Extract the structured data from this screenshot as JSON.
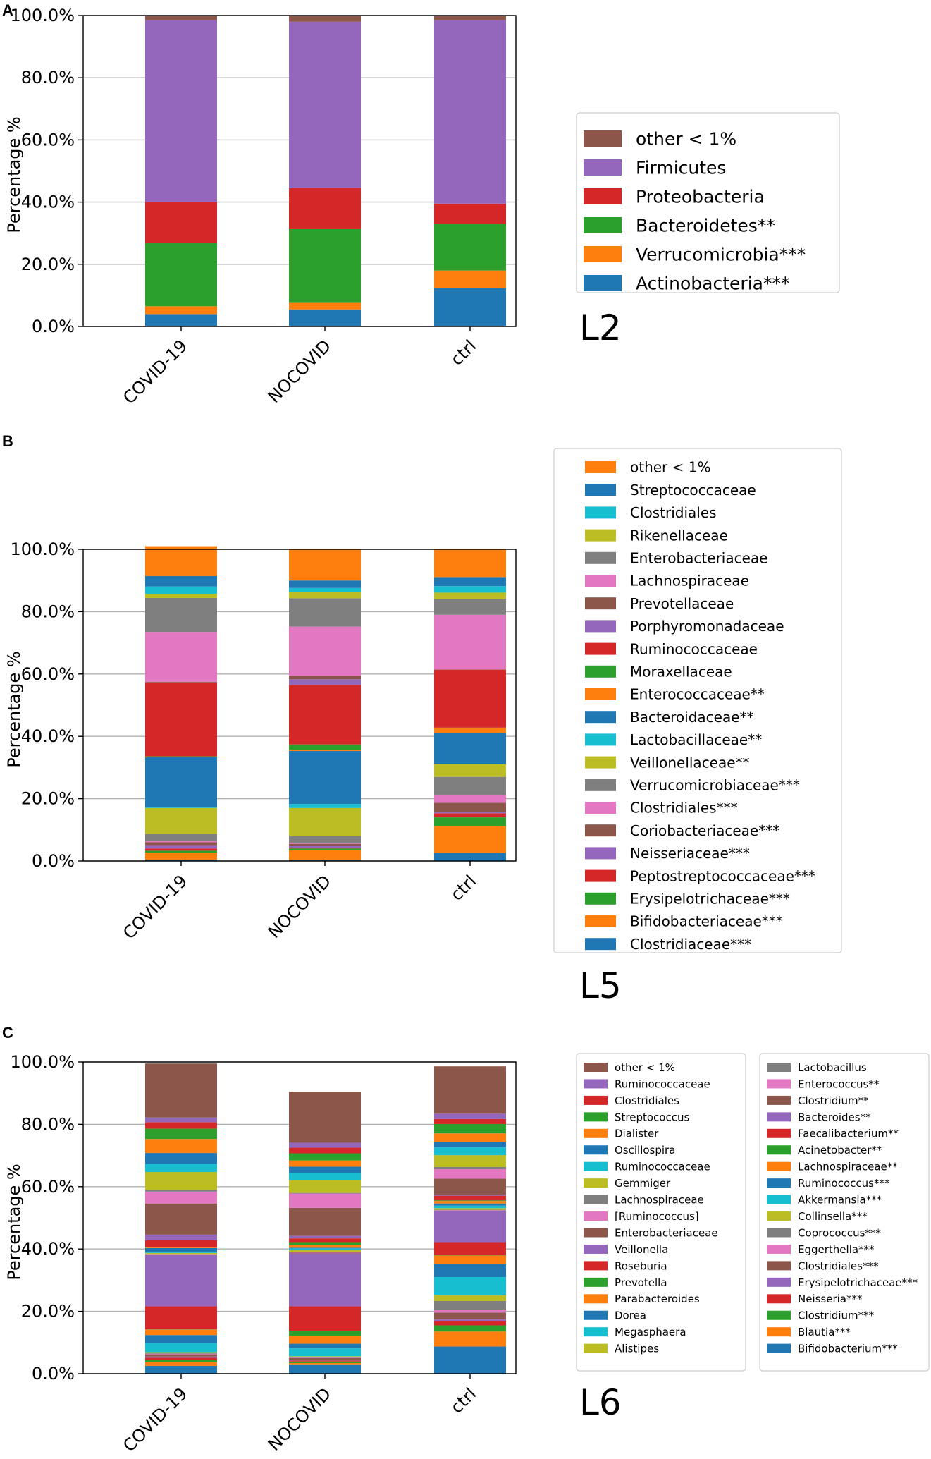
{
  "figure_labels": {
    "panel_a": "A",
    "panel_b": "B",
    "panel_c": "C",
    "level_a": "L2",
    "level_b": "L5",
    "level_c": "L6"
  },
  "chart_data": [
    {
      "type": "bar",
      "stacked": true,
      "panel": "A",
      "level": "L2",
      "title": "",
      "xlabel": "",
      "ylabel": "Percentage %",
      "ylim": [
        0,
        100
      ],
      "yticks": [
        "0.0%",
        "20.0%",
        "40.0%",
        "60.0%",
        "80.0%",
        "100.0%"
      ],
      "grid": true,
      "legend_position": "right",
      "categories": [
        "COVID-19",
        "NOCOVID",
        "ctrl"
      ],
      "series": [
        {
          "name": "Actinobacteria***",
          "color": "#1f77b4",
          "values": [
            4.0,
            5.5,
            12.3
          ]
        },
        {
          "name": "Verrucomicrobia***",
          "color": "#ff7f0e",
          "values": [
            2.5,
            2.3,
            5.7
          ]
        },
        {
          "name": "Bacteroidetes**",
          "color": "#2ca02c",
          "values": [
            20.3,
            23.5,
            15.0
          ]
        },
        {
          "name": "Proteobacteria",
          "color": "#d62728",
          "values": [
            13.2,
            13.2,
            6.5
          ]
        },
        {
          "name": "Firmicutes",
          "color": "#9467bd",
          "values": [
            58.5,
            53.5,
            59.0
          ]
        },
        {
          "name": "other < 1%",
          "color": "#8c564b",
          "values": [
            1.5,
            2.0,
            1.5
          ]
        }
      ]
    },
    {
      "type": "bar",
      "stacked": true,
      "panel": "B",
      "level": "L5",
      "title": "",
      "xlabel": "",
      "ylabel": "Percentage %",
      "ylim": [
        0,
        100
      ],
      "yticks": [
        "0.0%",
        "20.0%",
        "40.0%",
        "60.0%",
        "80.0%",
        "100.0%"
      ],
      "grid": true,
      "legend_position": "right",
      "categories": [
        "COVID-19",
        "NOCOVID",
        "ctrl"
      ],
      "series": [
        {
          "name": "Clostridiaceae***",
          "color": "#1f77b4",
          "values": [
            0.4,
            0.3,
            2.6
          ]
        },
        {
          "name": "Bifidobacteriaceae***",
          "color": "#ff7f0e",
          "values": [
            2.3,
            3.2,
            8.6
          ]
        },
        {
          "name": "Erysipelotrichaceae***",
          "color": "#2ca02c",
          "values": [
            0.6,
            0.5,
            2.8
          ]
        },
        {
          "name": "Peptostreptococcaceae***",
          "color": "#d62728",
          "values": [
            0.7,
            0.3,
            1.3
          ]
        },
        {
          "name": "Neisseriaceae***",
          "color": "#9467bd",
          "values": [
            1.1,
            0.6,
            0.3
          ]
        },
        {
          "name": "Coriobacteriaceae***",
          "color": "#8c564b",
          "values": [
            0.9,
            0.6,
            3.1
          ]
        },
        {
          "name": "Clostridiales***",
          "color": "#e377c2",
          "values": [
            0.5,
            0.4,
            2.4
          ]
        },
        {
          "name": "Verrucomicrobiaceae***",
          "color": "#7f7f7f",
          "values": [
            2.2,
            2.1,
            5.9
          ]
        },
        {
          "name": "Veillonellaceae**",
          "color": "#bcbd22",
          "values": [
            8.3,
            9.0,
            4.0
          ]
        },
        {
          "name": "Lactobacillaceae**",
          "color": "#17becf",
          "values": [
            0.3,
            1.3,
            0.1
          ]
        },
        {
          "name": "Bacteroidaceae**",
          "color": "#1f77b4",
          "values": [
            16.0,
            17.0,
            10.0
          ]
        },
        {
          "name": "Enterococcaceae**",
          "color": "#ff7f0e",
          "values": [
            0.2,
            0.3,
            1.6
          ]
        },
        {
          "name": "Moraxellaceae",
          "color": "#2ca02c",
          "values": [
            0.1,
            1.8,
            0.1
          ]
        },
        {
          "name": "Ruminococcaceae",
          "color": "#d62728",
          "values": [
            23.7,
            19.1,
            18.6
          ]
        },
        {
          "name": "Porphyromonadaceae",
          "color": "#9467bd",
          "values": [
            0.0,
            1.8,
            0.0
          ]
        },
        {
          "name": "Prevotellaceae",
          "color": "#8c564b",
          "values": [
            0.2,
            1.1,
            0.1
          ]
        },
        {
          "name": "Lachnospiraceae",
          "color": "#e377c2",
          "values": [
            16.0,
            15.8,
            17.5
          ]
        },
        {
          "name": "Enterobacteriaceae",
          "color": "#7f7f7f",
          "values": [
            10.9,
            9.1,
            5.0
          ]
        },
        {
          "name": "Rikenellaceae",
          "color": "#bcbd22",
          "values": [
            1.3,
            1.9,
            2.1
          ]
        },
        {
          "name": "Clostridiales",
          "color": "#17becf",
          "values": [
            2.4,
            1.4,
            2.1
          ]
        },
        {
          "name": "Streptococcaceae",
          "color": "#1f77b4",
          "values": [
            3.3,
            2.4,
            2.9
          ]
        },
        {
          "name": "other < 1%",
          "color": "#ff7f0e",
          "values": [
            9.6,
            10.0,
            8.9
          ]
        }
      ]
    },
    {
      "type": "bar",
      "stacked": true,
      "panel": "C",
      "level": "L6",
      "title": "",
      "xlabel": "",
      "ylabel": "Percentage %",
      "ylim": [
        0,
        100
      ],
      "yticks": [
        "0.0%",
        "20.0%",
        "40.0%",
        "60.0%",
        "80.0%",
        "100.0%"
      ],
      "grid": true,
      "legend_position": "right",
      "categories": [
        "COVID-19",
        "NOCOVID",
        "ctrl"
      ],
      "series": [
        {
          "name": "Bifidobacterium***",
          "color": "#1f77b4",
          "values": [
            2.5,
            3.0,
            8.7
          ]
        },
        {
          "name": "Blautia***",
          "color": "#ff7f0e",
          "values": [
            1.2,
            0.4,
            4.8
          ]
        },
        {
          "name": "Clostridium***",
          "color": "#2ca02c",
          "values": [
            0.6,
            0.5,
            2.0
          ]
        },
        {
          "name": "Neisseria***",
          "color": "#d62728",
          "values": [
            0.8,
            0.3,
            1.3
          ]
        },
        {
          "name": "Erysipelotrichaceae***",
          "color": "#9467bd",
          "values": [
            0.4,
            0.3,
            0.6
          ]
        },
        {
          "name": "Clostridiales***",
          "color": "#8c564b",
          "values": [
            0.7,
            0.5,
            2.2
          ]
        },
        {
          "name": "Eggerthella***",
          "color": "#e377c2",
          "values": [
            0.2,
            0.1,
            0.8
          ]
        },
        {
          "name": "Coprococcus***",
          "color": "#7f7f7f",
          "values": [
            0.3,
            0.2,
            2.9
          ]
        },
        {
          "name": "Collinsella***",
          "color": "#bcbd22",
          "values": [
            0.2,
            0.3,
            1.8
          ]
        },
        {
          "name": "Akkermansia***",
          "color": "#17becf",
          "values": [
            3.0,
            2.5,
            5.9
          ]
        },
        {
          "name": "Ruminococcus***",
          "color": "#1f77b4",
          "values": [
            2.5,
            1.5,
            4.1
          ]
        },
        {
          "name": "Lachnospiraceae**",
          "color": "#ff7f0e",
          "values": [
            1.7,
            2.6,
            2.8
          ]
        },
        {
          "name": "Acinetobacter**",
          "color": "#2ca02c",
          "values": [
            0.1,
            1.6,
            0.1
          ]
        },
        {
          "name": "Faecalibacterium**",
          "color": "#d62728",
          "values": [
            7.4,
            7.8,
            4.2
          ]
        },
        {
          "name": "Bacteroides**",
          "color": "#9467bd",
          "values": [
            16.5,
            17.0,
            10.1
          ]
        },
        {
          "name": "Clostridium**",
          "color": "#8c564b",
          "values": [
            0.2,
            0.2,
            0.1
          ]
        },
        {
          "name": "Enterococcus**",
          "color": "#e377c2",
          "values": [
            0.1,
            0.2,
            0.1
          ]
        },
        {
          "name": "Lactobacillus",
          "color": "#7f7f7f",
          "values": [
            0.0,
            0.1,
            0.1
          ]
        },
        {
          "name": "Alistipes",
          "color": "#bcbd22",
          "values": [
            0.3,
            0.5,
            0.5
          ]
        },
        {
          "name": "Megasphaera",
          "color": "#17becf",
          "values": [
            0.2,
            0.6,
            0.8
          ]
        },
        {
          "name": "Dorea",
          "color": "#1f77b4",
          "values": [
            1.4,
            0.2,
            0.7
          ]
        },
        {
          "name": "Parabacteroides",
          "color": "#ff7f0e",
          "values": [
            0.2,
            0.8,
            0.8
          ]
        },
        {
          "name": "Prevotella",
          "color": "#2ca02c",
          "values": [
            0.2,
            1.0,
            0.2
          ]
        },
        {
          "name": "Roseburia",
          "color": "#d62728",
          "values": [
            2.1,
            1.2,
            1.5
          ]
        },
        {
          "name": "Veillonella",
          "color": "#9467bd",
          "values": [
            1.8,
            0.8,
            0.3
          ]
        },
        {
          "name": "Enterobacteriaceae",
          "color": "#8c564b",
          "values": [
            10.0,
            9.0,
            5.2
          ]
        },
        {
          "name": "[Ruminococcus]",
          "color": "#e377c2",
          "values": [
            3.8,
            4.6,
            3.0
          ]
        },
        {
          "name": "Lachnospiraceae",
          "color": "#7f7f7f",
          "values": [
            0.5,
            0.2,
            0.7
          ]
        },
        {
          "name": "Gemmiger",
          "color": "#bcbd22",
          "values": [
            5.8,
            4.1,
            3.8
          ]
        },
        {
          "name": "Ruminococcaceae",
          "color": "#17becf",
          "values": [
            2.6,
            2.3,
            2.5
          ]
        },
        {
          "name": "Oscillospira",
          "color": "#1f77b4",
          "values": [
            3.5,
            2.0,
            1.8
          ]
        },
        {
          "name": "Dialister",
          "color": "#ff7f0e",
          "values": [
            4.5,
            2.0,
            2.7
          ]
        },
        {
          "name": "Streptococcus",
          "color": "#2ca02c",
          "values": [
            3.3,
            2.3,
            3.0
          ]
        },
        {
          "name": "Clostridiales",
          "color": "#d62728",
          "values": [
            2.1,
            1.8,
            1.6
          ]
        },
        {
          "name": "Ruminococcaceae",
          "color": "#9467bd",
          "values": [
            1.5,
            1.6,
            1.7
          ]
        },
        {
          "name": "other < 1%",
          "color": "#8c564b",
          "values": [
            17.3,
            16.4,
            15.2
          ]
        }
      ]
    }
  ]
}
